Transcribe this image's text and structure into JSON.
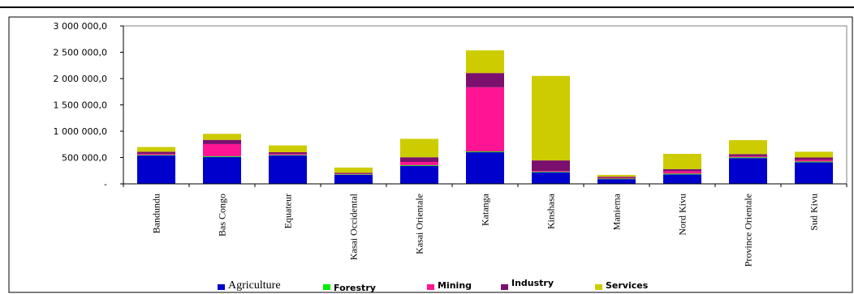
{
  "chart_data": {
    "type": "bar",
    "stacked": true,
    "categories": [
      "Bandundu",
      "Bas Congo",
      "Equateur",
      "Kasai Occidental",
      "Kasai Orientale",
      "Katanga",
      "Kinshasa",
      "Maniema",
      "Nord Kivu",
      "Province Orientale",
      "Sud Kivu"
    ],
    "series": [
      {
        "name": "Agriculture",
        "color": "#0000cc",
        "values": [
          540000,
          510000,
          540000,
          170000,
          340000,
          600000,
          220000,
          90000,
          180000,
          490000,
          410000
        ]
      },
      {
        "name": "Forestry",
        "color": "#00ee00",
        "values": [
          10000,
          15000,
          10000,
          10000,
          15000,
          15000,
          10000,
          10000,
          15000,
          15000,
          15000
        ]
      },
      {
        "name": "Mining",
        "color": "#ff1493",
        "values": [
          20000,
          230000,
          20000,
          10000,
          60000,
          1220000,
          15000,
          15000,
          45000,
          20000,
          30000
        ]
      },
      {
        "name": "Industry",
        "color": "#7a0f6e",
        "values": [
          40000,
          80000,
          30000,
          20000,
          90000,
          270000,
          200000,
          20000,
          40000,
          40000,
          45000
        ]
      },
      {
        "name": "Services",
        "color": "#cccc00",
        "values": [
          90000,
          115000,
          130000,
          100000,
          350000,
          430000,
          1605000,
          35000,
          290000,
          265000,
          110000
        ]
      }
    ],
    "yticks": [
      "3 000 000,0",
      "2 500 000,0",
      "2 000 000,0",
      "1 500 000,0",
      "1 000 000,0",
      "500 000,0",
      "-"
    ],
    "ylim": [
      0,
      3000000
    ],
    "legend_position": "bottom"
  }
}
